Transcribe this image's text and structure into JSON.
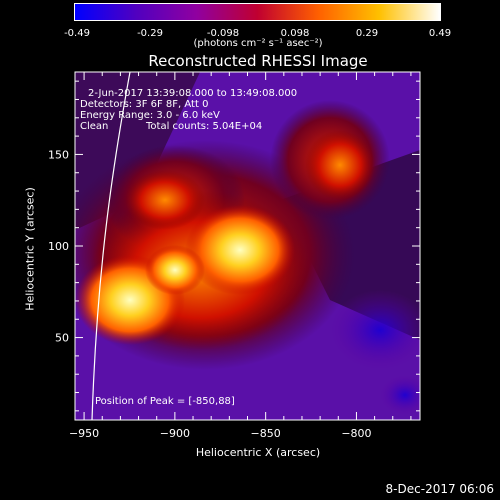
{
  "colorbar": {
    "ticks": [
      "-0.49",
      "-0.29",
      "-0.098",
      "0.098",
      "0.29",
      "0.49"
    ],
    "units": "(photons cm⁻² s⁻¹ asec⁻²)",
    "range": [
      -0.49,
      0.49
    ],
    "colors": [
      "#0000ff",
      "#5000c0",
      "#9000a0",
      "#c00030",
      "#ff6000",
      "#ffc000",
      "#ffffff"
    ]
  },
  "chart_data": {
    "type": "heatmap",
    "title": "Reconstructed RHESSI Image",
    "xlabel": "Heliocentric X (arcsec)",
    "ylabel": "Heliocentric Y (arcsec)",
    "xlim": [
      -955,
      -765
    ],
    "ylim": [
      5,
      195
    ],
    "xticks": [
      -950,
      -900,
      -850,
      -800
    ],
    "yticks": [
      50,
      100,
      150
    ],
    "peak": [
      -850,
      88
    ],
    "annotations": {
      "time": "2-Jun-2017 13:39:08.000 to 13:49:08.000",
      "detectors": "Detectors: 3F 6F 8F, Att 0",
      "energy": "Energy Range: 3.0 - 6.0 keV",
      "method": "Clean",
      "counts": "Total counts: 5.04E+04",
      "peak_text": "Position of Peak = [-850,88]"
    }
  },
  "footer": {
    "date": "8-Dec-2017 06:06"
  }
}
